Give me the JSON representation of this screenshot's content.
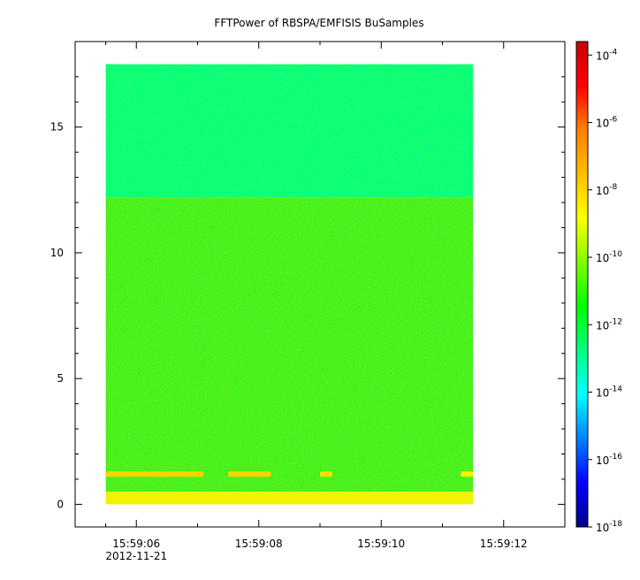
{
  "chart_data": {
    "type": "heatmap",
    "title": "FFTPower of RBSPA/EMFISIS  BuSamples",
    "xlabel": "",
    "ylabel": "",
    "x_axis": {
      "type": "time",
      "range": [
        "15:59:05.0",
        "15:59:13.0"
      ],
      "data_range": [
        "15:59:05.5",
        "15:59:11.5"
      ],
      "major_ticks": [
        {
          "value": "15:59:06",
          "label": "15:59:06",
          "date_label": "2012-11-21"
        },
        {
          "value": "15:59:08",
          "label": "15:59:08",
          "date_label": ""
        },
        {
          "value": "15:59:10",
          "label": "15:59:10",
          "date_label": ""
        },
        {
          "value": "15:59:12",
          "label": "15:59:12",
          "date_label": ""
        }
      ],
      "minor_ticks": [
        "15:59:05.5",
        "15:59:07",
        "15:59:09",
        "15:59:11"
      ]
    },
    "y_axis": {
      "range": [
        -0.9,
        18.4
      ],
      "data_range": [
        0,
        17.5
      ],
      "ticks": [
        0,
        5,
        10,
        15
      ],
      "tick_labels": [
        "0",
        "5",
        "10",
        "15"
      ]
    },
    "colorbar": {
      "scale": "log",
      "range_exponent": [
        -18,
        -3.6
      ],
      "tick_exponents": [
        -18,
        -16,
        -14,
        -12,
        -10,
        -8,
        -6,
        -4
      ],
      "tick_base": "10",
      "colors": [
        "#00008f",
        "#0000ff",
        "#0080ff",
        "#00ffff",
        "#00ff80",
        "#00ff00",
        "#80ff00",
        "#ffff00",
        "#ffc000",
        "#ff8000",
        "#ff0000",
        "#c80000"
      ]
    },
    "bands": [
      {
        "y_from": 12.2,
        "y_to": 17.5,
        "log_power": -12.8,
        "note_color": "#00ff7e"
      },
      {
        "y_from": 0.5,
        "y_to": 12.2,
        "log_power": -10.3,
        "note_color": "#40f020"
      },
      {
        "y_from": 0.0,
        "y_to": 0.5,
        "log_power": -8.6,
        "note_color": "#f2f200"
      }
    ],
    "features": [
      {
        "y": 1.2,
        "x_from": "15:59:05.5",
        "x_to": "15:59:07.1",
        "log_power": -7.9
      },
      {
        "y": 1.2,
        "x_from": "15:59:07.5",
        "x_to": "15:59:08.2",
        "log_power": -7.9
      },
      {
        "y": 1.2,
        "x_from": "15:59:09.0",
        "x_to": "15:59:09.2",
        "log_power": -8.2
      },
      {
        "y": 1.2,
        "x_from": "15:59:11.3",
        "x_to": "15:59:11.5",
        "log_power": -8.5
      }
    ]
  }
}
